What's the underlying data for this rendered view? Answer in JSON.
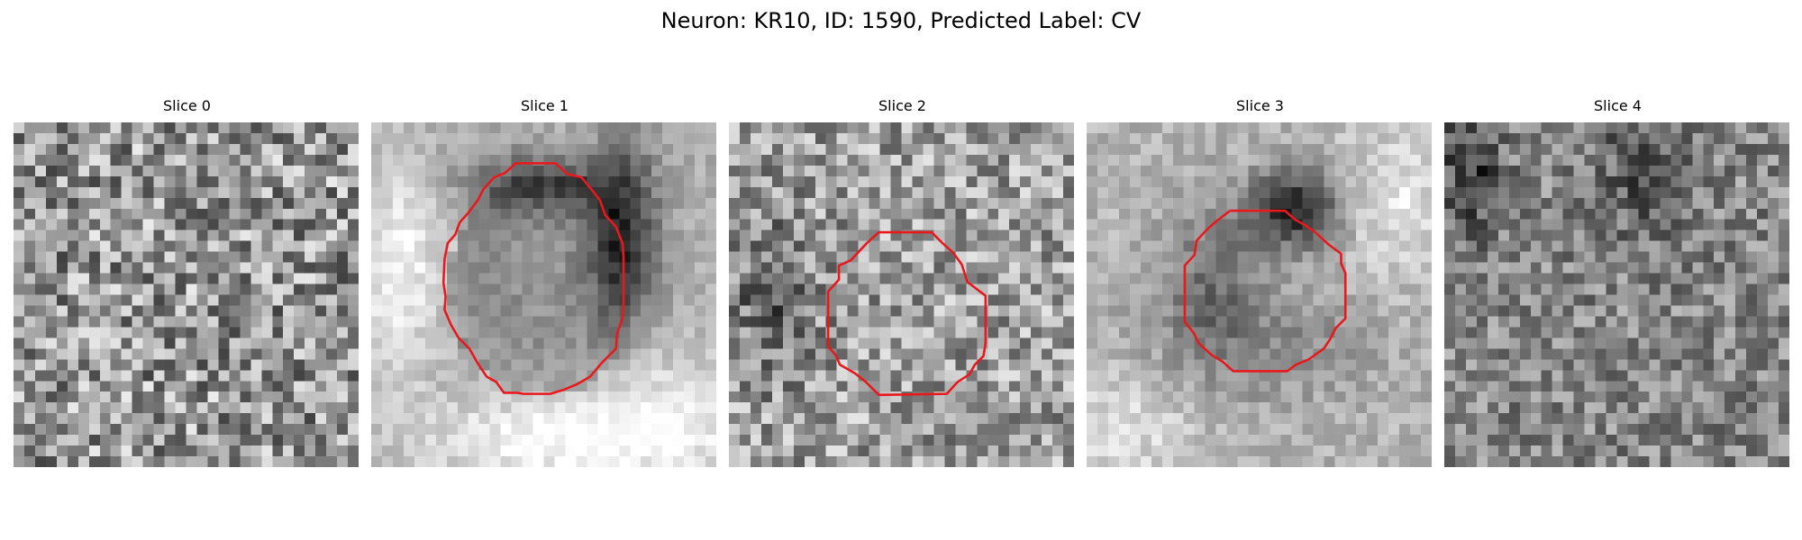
{
  "title": "Neuron: KR10, ID: 1590, Predicted Label: CV",
  "panels": [
    {
      "title": "Slice 0",
      "contour": false
    },
    {
      "title": "Slice 1",
      "contour": true
    },
    {
      "title": "Slice 2",
      "contour": true
    },
    {
      "title": "Slice 3",
      "contour": true
    },
    {
      "title": "Slice 4",
      "contour": false
    }
  ],
  "colors": {
    "contour": "#e8191d",
    "background": "#ffffff"
  }
}
